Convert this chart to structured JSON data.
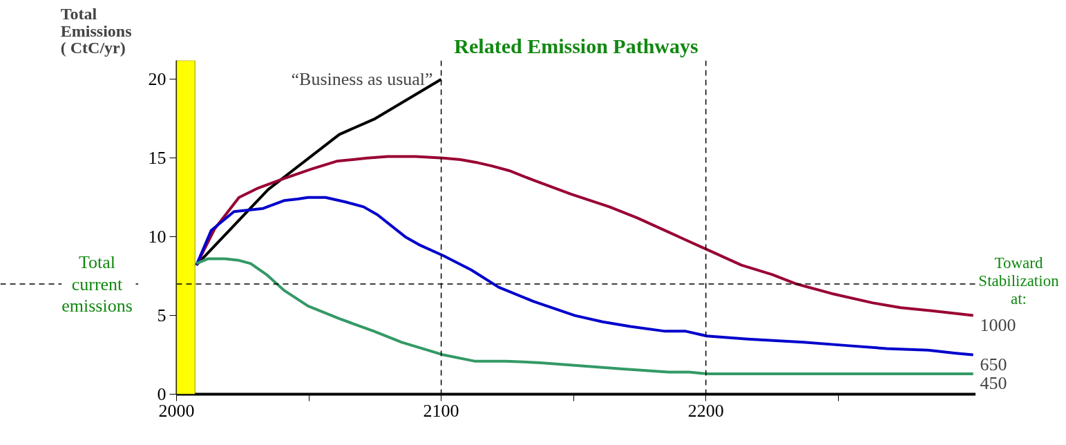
{
  "chart_data": {
    "type": "line",
    "title": "Related Emission Pathways",
    "ylabel": "Total\nEmissions\n( CtC/yr)",
    "xlim": [
      2000,
      2302
    ],
    "ylim": [
      0,
      21.2
    ],
    "xticks": [
      2000,
      {
        "value": 2050,
        "label": null
      },
      2100,
      {
        "value": 2150,
        "label": null
      },
      2200,
      {
        "value": 2250,
        "label": null
      }
    ],
    "yticks": [
      0,
      5,
      10,
      15,
      20
    ],
    "grid": false,
    "legend": false,
    "marker": "none",
    "line_style": "solid",
    "series": [
      {
        "name": "“Business as usual”",
        "color": "#000000",
        "x": [
          2007.5,
          2034.6,
          2061.5,
          2075,
          2100
        ],
        "values": [
          8.2,
          13.0,
          16.5,
          17.5,
          20.0
        ]
      },
      {
        "name": "1000",
        "color": "#990033",
        "x": [
          2007.5,
          2014.4,
          2023.6,
          2030.9,
          2040.6,
          2051.0,
          2060.5,
          2072.0,
          2079.8,
          2090.3,
          2100.8,
          2107.3,
          2113.9,
          2119.1,
          2125.7,
          2134.8,
          2149.2,
          2163.6,
          2174.1,
          2185.9,
          2192.4,
          2200.3,
          2213.4,
          2225.1,
          2234.3,
          2247.4,
          2263.1,
          2273.6,
          2285.3,
          2301
        ],
        "values": [
          8.2,
          10.5,
          12.5,
          13.1,
          13.7,
          14.3,
          14.8,
          15.0,
          15.1,
          15.1,
          15.0,
          14.9,
          14.7,
          14.5,
          14.2,
          13.6,
          12.7,
          11.9,
          11.2,
          10.3,
          9.8,
          9.2,
          8.2,
          7.6,
          7.0,
          6.4,
          5.8,
          5.5,
          5.3,
          5.0
        ]
      },
      {
        "name": "650",
        "color": "#0000cc",
        "x": [
          2007.5,
          2013.1,
          2021.7,
          2032.7,
          2040.6,
          2045.8,
          2049.7,
          2056.3,
          2064.1,
          2070.7,
          2075.9,
          2086.4,
          2091.6,
          2100.8,
          2111.3,
          2121.7,
          2134.8,
          2150.5,
          2161.0,
          2171.5,
          2184.6,
          2192.4,
          2200.3,
          2216.0,
          2226.4,
          2236.9,
          2252.6,
          2268.3,
          2284.0,
          2294.5,
          2301
        ],
        "values": [
          8.2,
          10.4,
          11.6,
          11.8,
          12.3,
          12.4,
          12.5,
          12.5,
          12.2,
          11.9,
          11.4,
          10.0,
          9.5,
          8.8,
          7.9,
          6.8,
          5.9,
          5.0,
          4.6,
          4.3,
          4.0,
          4.0,
          3.7,
          3.5,
          3.4,
          3.3,
          3.1,
          2.9,
          2.8,
          2.6,
          2.5
        ]
      },
      {
        "name": "450",
        "color": "#339966",
        "x": [
          2007.5,
          2011.8,
          2018.3,
          2023.6,
          2028.0,
          2034.0,
          2040.6,
          2049.7,
          2061.5,
          2074.6,
          2085.1,
          2100.8,
          2112.6,
          2124.3,
          2137.4,
          2153.1,
          2168.8,
          2185.9,
          2193.7,
          2200.3,
          2301
        ],
        "values": [
          8.3,
          8.6,
          8.6,
          8.5,
          8.3,
          7.6,
          6.6,
          5.6,
          4.8,
          4.0,
          3.3,
          2.5,
          2.1,
          2.1,
          2.0,
          1.8,
          1.6,
          1.4,
          1.4,
          1.3,
          1.3
        ]
      }
    ],
    "ref_lines": [
      {
        "axis": "y",
        "value": 7,
        "label": "Total current emissions",
        "color": "#000000",
        "line_style": "dashed"
      },
      {
        "axis": "x",
        "value": 2100,
        "color": "#000000",
        "line_style": "dashed"
      },
      {
        "axis": "x",
        "value": 2200,
        "color": "#000000",
        "line_style": "dashed"
      }
    ],
    "bands": [
      {
        "axis": "x",
        "from": 2000,
        "to": 2007,
        "color": "#ffff00"
      }
    ],
    "annotations": [
      "Toward Stabilization at:"
    ]
  }
}
